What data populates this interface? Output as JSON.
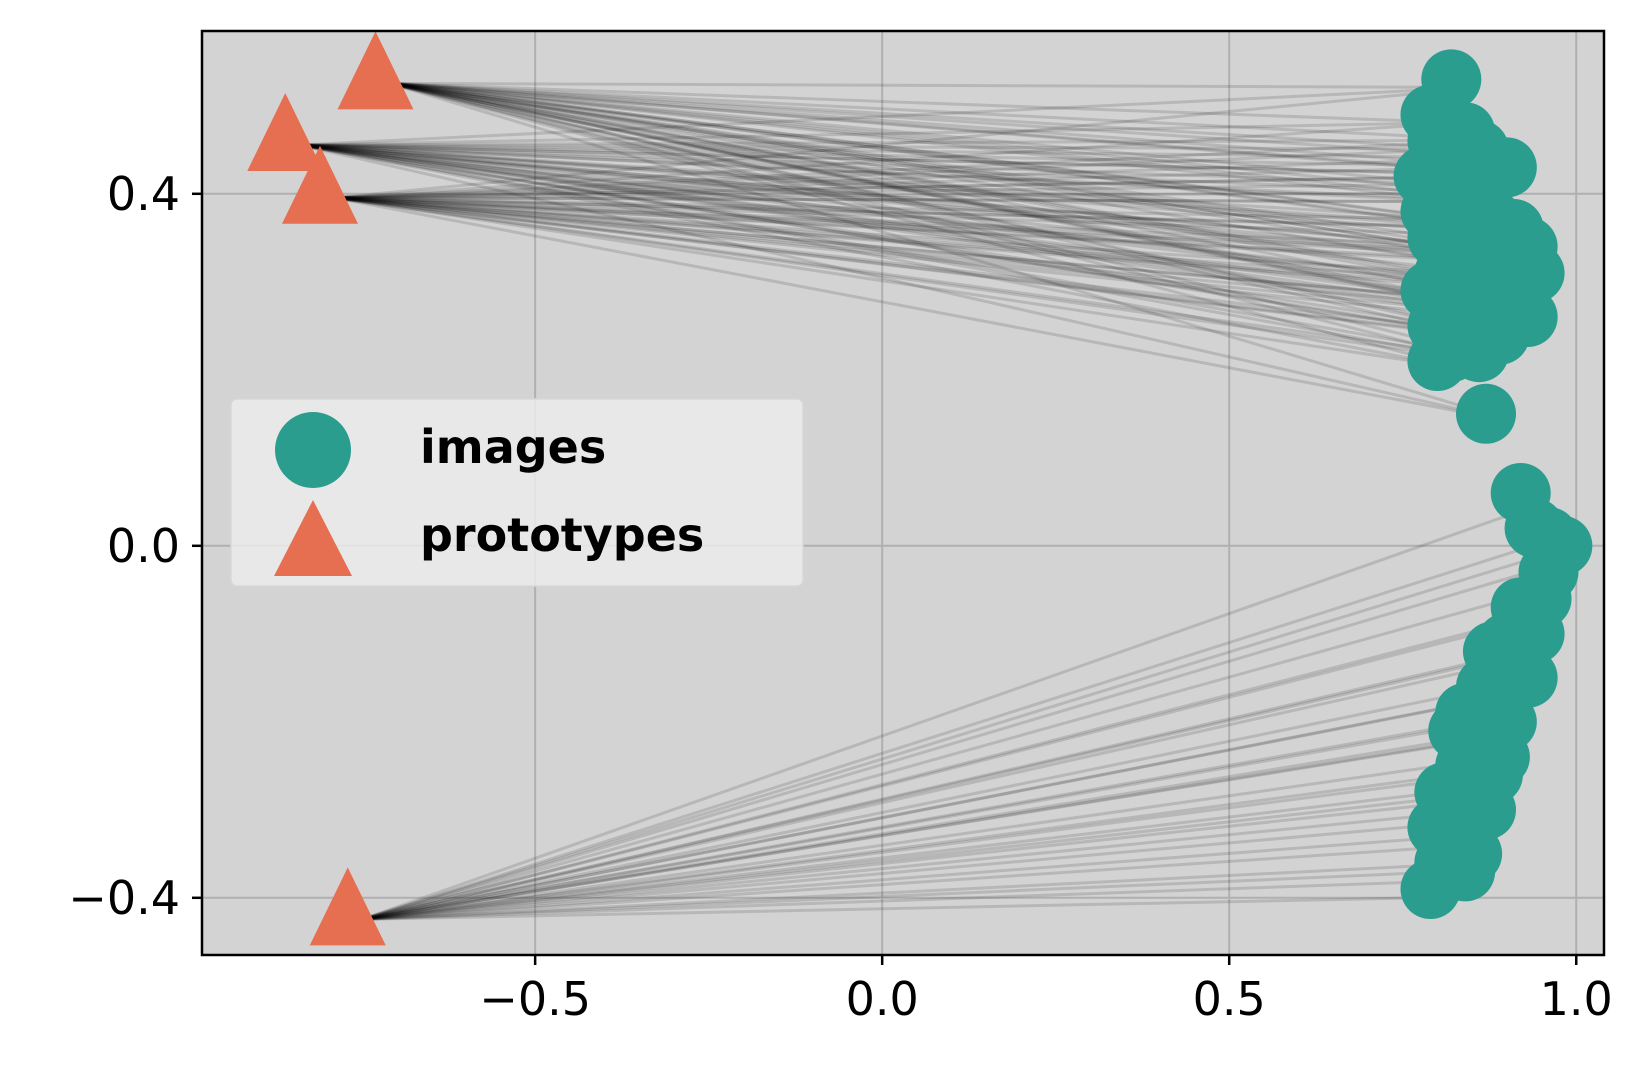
{
  "chart_data": {
    "type": "scatter",
    "title": "",
    "xlabel": "",
    "ylabel": "",
    "xlim": [
      -0.98,
      1.04
    ],
    "ylim": [
      -0.465,
      0.585
    ],
    "xticks": [
      {
        "value": -0.5,
        "label": "−0.5"
      },
      {
        "value": 0.0,
        "label": "0.0"
      },
      {
        "value": 0.5,
        "label": "0.5"
      },
      {
        "value": 1.0,
        "label": "1.0"
      }
    ],
    "yticks": [
      {
        "value": -0.4,
        "label": "−0.4"
      },
      {
        "value": 0.0,
        "label": "0.0"
      },
      {
        "value": 0.4,
        "label": "0.4"
      }
    ],
    "grid": true,
    "background_color": "#d3d3d3",
    "legend_position": "center-left",
    "series": [
      {
        "name": "images",
        "marker": "circle",
        "color": "#2a9d8f",
        "points": [
          [
            0.82,
            0.53
          ],
          [
            0.79,
            0.49
          ],
          [
            0.8,
            0.46
          ],
          [
            0.84,
            0.47
          ],
          [
            0.86,
            0.45
          ],
          [
            0.87,
            0.43
          ],
          [
            0.85,
            0.44
          ],
          [
            0.9,
            0.43
          ],
          [
            0.78,
            0.42
          ],
          [
            0.8,
            0.4
          ],
          [
            0.82,
            0.41
          ],
          [
            0.86,
            0.4
          ],
          [
            0.79,
            0.38
          ],
          [
            0.83,
            0.37
          ],
          [
            0.88,
            0.37
          ],
          [
            0.91,
            0.36
          ],
          [
            0.93,
            0.34
          ],
          [
            0.8,
            0.35
          ],
          [
            0.84,
            0.34
          ],
          [
            0.87,
            0.33
          ],
          [
            0.92,
            0.33
          ],
          [
            0.81,
            0.31
          ],
          [
            0.85,
            0.3
          ],
          [
            0.9,
            0.3
          ],
          [
            0.94,
            0.31
          ],
          [
            0.79,
            0.29
          ],
          [
            0.83,
            0.28
          ],
          [
            0.88,
            0.27
          ],
          [
            0.92,
            0.28
          ],
          [
            0.8,
            0.25
          ],
          [
            0.85,
            0.25
          ],
          [
            0.89,
            0.24
          ],
          [
            0.93,
            0.26
          ],
          [
            0.82,
            0.22
          ],
          [
            0.86,
            0.22
          ],
          [
            0.8,
            0.21
          ],
          [
            0.87,
            0.15
          ],
          [
            0.92,
            0.06
          ],
          [
            0.96,
            0.01
          ],
          [
            0.98,
            0.0
          ],
          [
            0.94,
            0.02
          ],
          [
            0.96,
            -0.03
          ],
          [
            0.95,
            -0.06
          ],
          [
            0.92,
            -0.07
          ],
          [
            0.94,
            -0.1
          ],
          [
            0.9,
            -0.11
          ],
          [
            0.88,
            -0.12
          ],
          [
            0.91,
            -0.14
          ],
          [
            0.93,
            -0.15
          ],
          [
            0.87,
            -0.16
          ],
          [
            0.89,
            -0.18
          ],
          [
            0.84,
            -0.19
          ],
          [
            0.87,
            -0.2
          ],
          [
            0.9,
            -0.2
          ],
          [
            0.83,
            -0.21
          ],
          [
            0.86,
            -0.23
          ],
          [
            0.89,
            -0.24
          ],
          [
            0.84,
            -0.25
          ],
          [
            0.88,
            -0.26
          ],
          [
            0.85,
            -0.27
          ],
          [
            0.81,
            -0.28
          ],
          [
            0.84,
            -0.29
          ],
          [
            0.87,
            -0.3
          ],
          [
            0.8,
            -0.32
          ],
          [
            0.83,
            -0.33
          ],
          [
            0.85,
            -0.35
          ],
          [
            0.81,
            -0.36
          ],
          [
            0.84,
            -0.37
          ],
          [
            0.79,
            -0.39
          ]
        ]
      },
      {
        "name": "prototypes",
        "marker": "triangle",
        "color": "#e76f51",
        "points": [
          [
            -0.73,
            0.53
          ],
          [
            -0.86,
            0.46
          ],
          [
            -0.81,
            0.4
          ],
          [
            -0.77,
            -0.42
          ]
        ]
      }
    ],
    "connections": {
      "color": "#000000",
      "description_of_marks": "each image point linked by a translucent line to a prototype"
    }
  }
}
